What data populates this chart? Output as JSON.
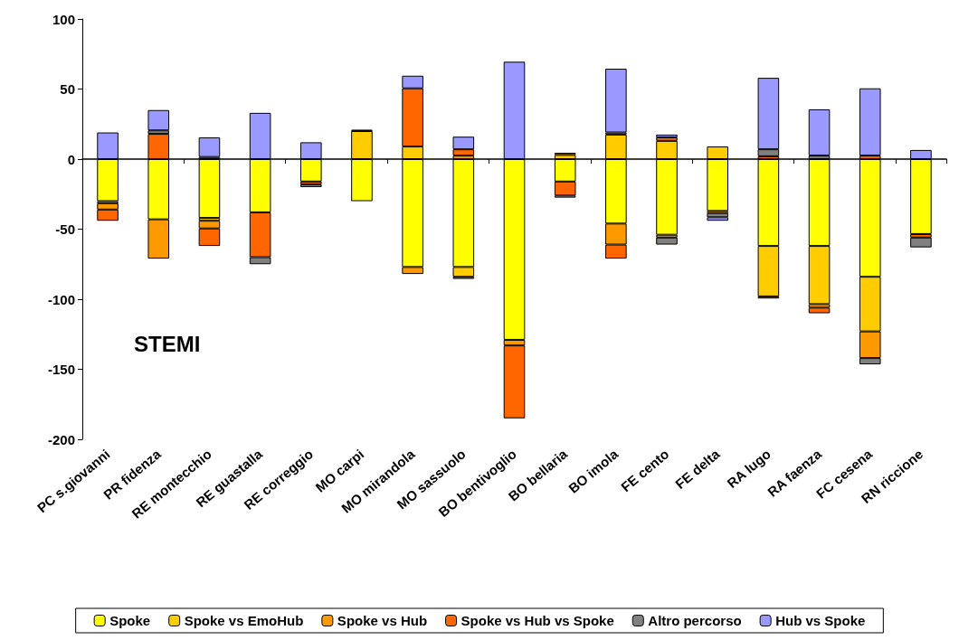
{
  "chart_data": {
    "type": "bar",
    "stacked": true,
    "categories": [
      "PC s.giovanni",
      "PR fidenza",
      "RE montecchio",
      "RE guastalla",
      "RE correggio",
      "MO carpi",
      "MO mirandola",
      "MO sassuolo",
      "BO bentivoglio",
      "BO bellaria",
      "BO imola",
      "FE cento",
      "FE delta",
      "RA lugo",
      "RA faenza",
      "FC cesena",
      "RN riccione"
    ],
    "series": [
      {
        "name": "Spoke",
        "color": "#ffff00",
        "values": [
          -30,
          -43,
          -42,
          -38,
          -16,
          -30,
          -77,
          -77,
          -129,
          -16,
          -46,
          -54,
          -37,
          -62,
          -62,
          -84,
          -53.5
        ]
      },
      {
        "name": "Spoke vs EmoHub",
        "color": "#ffcc00",
        "values": [
          -1.5,
          null,
          -2,
          null,
          null,
          20,
          9,
          -7,
          null,
          3,
          17.5,
          13,
          9,
          -36,
          -41.5,
          -39,
          null
        ]
      },
      {
        "name": "Spoke vs Hub",
        "color": "#ff9900",
        "values": [
          -4.5,
          -28,
          -5.5,
          null,
          null,
          null,
          -5,
          2.5,
          -4,
          1.5,
          -15,
          -2,
          -1.5,
          -1.5,
          -2.5,
          -19,
          null
        ]
      },
      {
        "name": "Spoke vs Hub vs Spoke",
        "color": "#ff6600",
        "values": [
          -8,
          18,
          -12.5,
          -32,
          -2,
          1,
          41.5,
          4.5,
          -52,
          -10,
          -10,
          2.5,
          null,
          2,
          -4,
          2.5,
          -2.5
        ]
      },
      {
        "name": "Altro percorso",
        "color": "#808080",
        "values": [
          null,
          2.5,
          1.5,
          -5,
          -2,
          null,
          null,
          -1.5,
          null,
          null,
          1.5,
          -5,
          -3,
          5,
          2.5,
          -4.5,
          -7
        ]
      },
      {
        "name": "Hub vs Spoke",
        "color": "#9999ff",
        "values": [
          19,
          14.5,
          14,
          33,
          12,
          null,
          9,
          9,
          69.5,
          -1.5,
          45.5,
          2,
          -2.5,
          51,
          33,
          48,
          6.5
        ]
      }
    ],
    "ylim": [
      -200,
      100
    ],
    "yticks": [
      -200,
      -150,
      -100,
      -50,
      0,
      50,
      100
    ],
    "legend": "bottom",
    "annotations": [
      "STEMI"
    ]
  }
}
